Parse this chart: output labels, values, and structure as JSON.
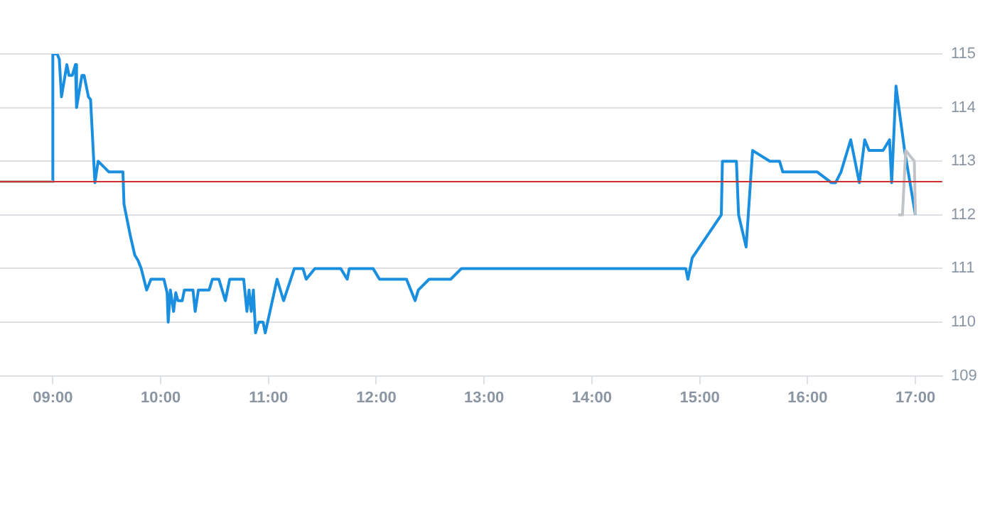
{
  "chart_data": {
    "type": "line",
    "xlim": [
      8.51,
      17.25
    ],
    "ylim": [
      109,
      115
    ],
    "xticks": [
      {
        "value": 9,
        "label": "09:00"
      },
      {
        "value": 10,
        "label": "10:00"
      },
      {
        "value": 11,
        "label": "11:00"
      },
      {
        "value": 12,
        "label": "12:00"
      },
      {
        "value": 13,
        "label": "13:00"
      },
      {
        "value": 14,
        "label": "14:00"
      },
      {
        "value": 15,
        "label": "15:00"
      },
      {
        "value": 16,
        "label": "16:00"
      },
      {
        "value": 17,
        "label": "17:00"
      }
    ],
    "yticks": [
      109,
      110,
      111,
      112,
      113,
      114,
      115
    ],
    "grid": "y",
    "legend": false,
    "marker": "none",
    "line_style": "solid",
    "ref_lines": [
      {
        "axis": "y",
        "value": 112.62,
        "color": "#cc3333"
      }
    ],
    "series": [
      {
        "color": "#c0c4c8",
        "x": [
          8.51,
          9.0,
          9.01,
          16.84,
          16.88,
          16.91,
          16.99,
          17.0
        ],
        "values": [
          112.62,
          112.62,
          null,
          112.0,
          112.0,
          113.2,
          113.0,
          112.0
        ]
      },
      {
        "color": "#1a8fe0",
        "x": [
          9.0,
          9.0,
          9.04,
          9.06,
          9.08,
          9.13,
          9.15,
          9.18,
          9.21,
          9.22,
          9.27,
          9.29,
          9.33,
          9.35,
          9.39,
          9.42,
          9.52,
          9.65,
          9.66,
          9.72,
          9.76,
          9.79,
          9.82,
          9.87,
          9.91,
          10.03,
          10.06,
          10.07,
          10.09,
          10.12,
          10.14,
          10.16,
          10.2,
          10.22,
          10.3,
          10.32,
          10.35,
          10.45,
          10.48,
          10.54,
          10.6,
          10.64,
          10.77,
          10.8,
          10.82,
          10.84,
          10.86,
          10.88,
          10.91,
          10.95,
          10.97,
          11.08,
          11.14,
          11.24,
          11.32,
          11.35,
          11.43,
          11.67,
          11.73,
          11.75,
          11.97,
          12.03,
          12.28,
          12.36,
          12.39,
          12.49,
          12.69,
          12.79,
          14.87,
          14.89,
          14.93,
          15.2,
          15.21,
          15.34,
          15.36,
          15.43,
          15.49,
          15.65,
          15.74,
          15.77,
          16.09,
          16.22,
          16.26,
          16.31,
          16.4,
          16.48,
          16.53,
          16.57,
          16.7,
          16.76,
          16.78,
          16.82,
          16.9,
          17.0
        ],
        "values": [
          112.6,
          115.0,
          115.0,
          114.9,
          114.2,
          114.8,
          114.6,
          114.6,
          114.8,
          114.0,
          114.6,
          114.6,
          114.2,
          114.15,
          112.6,
          113.0,
          112.8,
          112.8,
          112.2,
          111.6,
          111.25,
          111.15,
          111.0,
          110.6,
          110.8,
          110.8,
          110.55,
          110.0,
          110.6,
          110.2,
          110.55,
          110.4,
          110.4,
          110.6,
          110.6,
          110.2,
          110.6,
          110.6,
          110.8,
          110.8,
          110.4,
          110.8,
          110.8,
          110.2,
          110.6,
          110.2,
          110.6,
          109.8,
          110.0,
          110.0,
          109.8,
          110.8,
          110.4,
          111.0,
          111.0,
          110.8,
          111.0,
          111.0,
          110.8,
          111.0,
          111.0,
          110.8,
          110.8,
          110.4,
          110.6,
          110.8,
          110.8,
          111.0,
          111.0,
          110.8,
          111.2,
          112.0,
          113.0,
          113.0,
          112.0,
          111.4,
          113.2,
          113.0,
          113.0,
          112.8,
          112.8,
          112.6,
          112.6,
          112.8,
          113.4,
          112.6,
          113.4,
          113.2,
          113.2,
          113.4,
          112.6,
          114.4,
          113.2,
          112.0
        ]
      }
    ]
  }
}
